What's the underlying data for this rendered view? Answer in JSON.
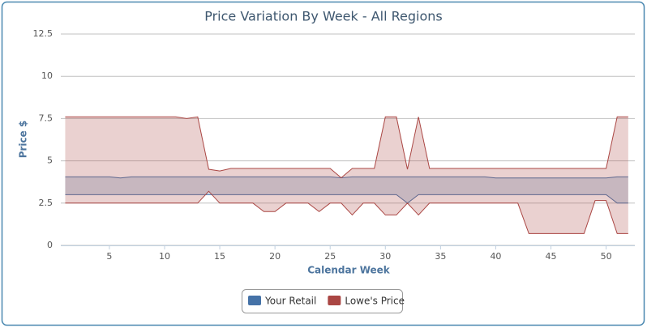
{
  "chart_data": {
    "type": "arearange",
    "title": "Price Variation By Week - All Regions",
    "x_label": "Calendar Week",
    "y_label": "Price $",
    "x": [
      1,
      2,
      3,
      4,
      5,
      6,
      7,
      8,
      9,
      10,
      11,
      12,
      13,
      14,
      15,
      16,
      17,
      18,
      19,
      20,
      21,
      22,
      23,
      24,
      25,
      26,
      27,
      28,
      29,
      30,
      31,
      32,
      33,
      34,
      35,
      36,
      37,
      38,
      39,
      40,
      41,
      42,
      43,
      44,
      45,
      46,
      47,
      48,
      49,
      50,
      51,
      52
    ],
    "xlim": [
      0.6,
      52.6
    ],
    "xticks": [
      5,
      10,
      15,
      20,
      25,
      30,
      35,
      40,
      45,
      50
    ],
    "ylim": [
      0,
      12.5
    ],
    "yticks": [
      0,
      2.5,
      5,
      7.5,
      10,
      12.5
    ],
    "grid": true,
    "series": [
      {
        "name": "Your Retail",
        "color": "#4572a7",
        "low": [
          3,
          3,
          3,
          3,
          3,
          3,
          3,
          3,
          3,
          3,
          3,
          3,
          3,
          3,
          3,
          3,
          3,
          3,
          3,
          3,
          3,
          3,
          3,
          3,
          3,
          3,
          3,
          3,
          3,
          3,
          3,
          2.5,
          3,
          3,
          3,
          3,
          3,
          3,
          3,
          3,
          3,
          3,
          3,
          3,
          3,
          3,
          3,
          3,
          3,
          3,
          2.5,
          2.5
        ],
        "high": [
          4.05,
          4.05,
          4.05,
          4.05,
          4.05,
          3.99,
          4.05,
          4.05,
          4.05,
          4.05,
          4.05,
          4.05,
          4.05,
          4.05,
          4.05,
          4.05,
          4.05,
          4.05,
          4.05,
          4.05,
          4.05,
          4.05,
          4.05,
          4.05,
          4.05,
          4.0,
          4.05,
          4.05,
          4.05,
          4.05,
          4.05,
          4.05,
          4.05,
          4.05,
          4.05,
          4.05,
          4.05,
          4.05,
          4.05,
          3.99,
          3.99,
          3.99,
          3.99,
          3.99,
          3.99,
          3.99,
          3.99,
          3.99,
          3.99,
          3.99,
          4.05,
          4.05
        ]
      },
      {
        "name": "Lowe's Price",
        "color": "#aa4643",
        "low": [
          2.5,
          2.5,
          2.5,
          2.5,
          2.5,
          2.5,
          2.5,
          2.5,
          2.5,
          2.5,
          2.5,
          2.5,
          2.5,
          3.2,
          2.5,
          2.5,
          2.5,
          2.5,
          2.0,
          2.0,
          2.5,
          2.5,
          2.5,
          2.0,
          2.5,
          2.5,
          1.8,
          2.5,
          2.5,
          1.8,
          1.8,
          2.5,
          1.8,
          2.5,
          2.5,
          2.5,
          2.5,
          2.5,
          2.5,
          2.5,
          2.5,
          2.5,
          0.7,
          0.7,
          0.7,
          0.7,
          0.7,
          0.7,
          2.65,
          2.65,
          0.7,
          0.7
        ],
        "high": [
          7.6,
          7.6,
          7.6,
          7.6,
          7.6,
          7.6,
          7.6,
          7.6,
          7.6,
          7.6,
          7.6,
          7.5,
          7.6,
          4.5,
          4.4,
          4.55,
          4.55,
          4.55,
          4.55,
          4.55,
          4.55,
          4.55,
          4.55,
          4.55,
          4.55,
          4.0,
          4.55,
          4.55,
          4.55,
          7.6,
          7.6,
          4.5,
          7.6,
          4.55,
          4.55,
          4.55,
          4.55,
          4.55,
          4.55,
          4.55,
          4.55,
          4.55,
          4.55,
          4.55,
          4.55,
          4.55,
          4.55,
          4.55,
          4.55,
          4.55,
          7.6,
          7.6
        ]
      }
    ]
  }
}
